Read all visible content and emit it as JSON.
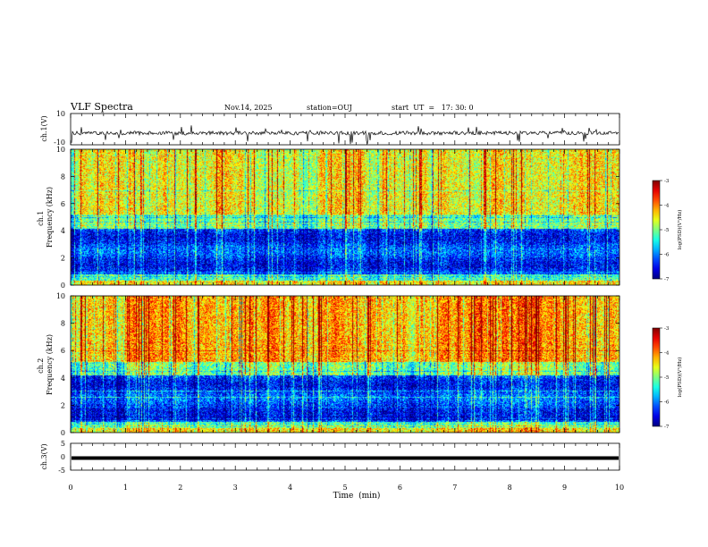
{
  "header": {
    "title": "VLF Spectra",
    "date": "Nov.14, 2025",
    "station": "station=OUJ",
    "start_ut": "start  UT  =   17: 30: 0"
  },
  "chart_data": [
    {
      "type": "line",
      "name": "ch1-waveform",
      "ylabel": "ch.1(V)",
      "ylim": [
        -10,
        10
      ],
      "y_ticklabels": [
        "10",
        "-10"
      ],
      "xlim": [
        0,
        10
      ],
      "baseline": -2.5,
      "noise_amplitude": 1.2
    },
    {
      "type": "heatmap",
      "name": "ch1-spectrogram",
      "ylabel": "ch.1\nFrequency  (kHz)",
      "ylim": [
        0,
        10
      ],
      "y_ticklabels": [
        "0",
        "2",
        "4",
        "6",
        "8",
        "10"
      ],
      "xlim": [
        0,
        10
      ],
      "colorbar": {
        "label": "log(PSD)(V²/Hz)",
        "range": [
          -7,
          -3
        ],
        "ticklabels": [
          "-3",
          "-4",
          "-5",
          "-6",
          "-7"
        ]
      }
    },
    {
      "type": "heatmap",
      "name": "ch2-spectrogram",
      "ylabel": "ch.2\nFrequency  (kHz)",
      "ylim": [
        0,
        10
      ],
      "y_ticklabels": [
        "0",
        "2",
        "4",
        "6",
        "8",
        "10"
      ],
      "xlim": [
        0,
        10
      ],
      "colorbar": {
        "label": "log(PSD)(V²/Hz)",
        "range": [
          -7,
          -3
        ],
        "ticklabels": [
          "-3",
          "-4",
          "-5",
          "-6",
          "-7"
        ]
      }
    },
    {
      "type": "line",
      "name": "ch3-waveform",
      "ylabel": "ch.3(V)",
      "ylim": [
        -5,
        5
      ],
      "y_ticklabels": [
        "5",
        "0",
        "-5"
      ],
      "xlim": [
        0,
        10
      ],
      "baseline": -0.5,
      "xlabel": "Time  (min)",
      "x_ticklabels": [
        "0",
        "1",
        "2",
        "3",
        "4",
        "5",
        "6",
        "7",
        "8",
        "9",
        "10"
      ]
    }
  ]
}
